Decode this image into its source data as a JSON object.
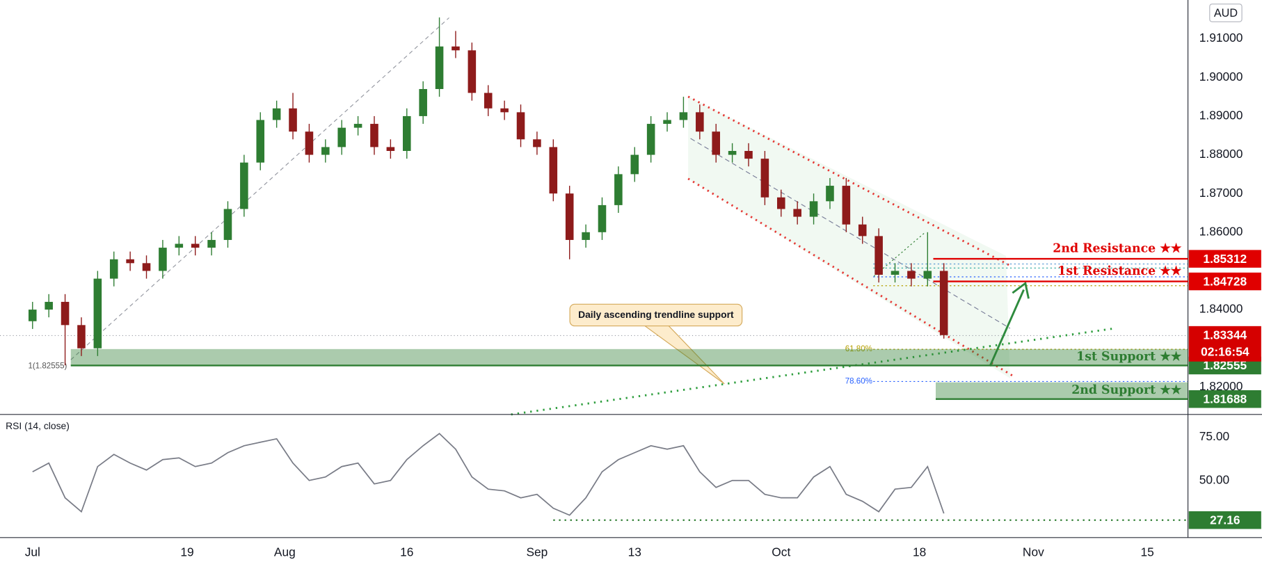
{
  "chart_data": [
    {
      "type": "candlestick",
      "currency": "AUD",
      "x": [
        0,
        2,
        4,
        6,
        8,
        10,
        12,
        14,
        16,
        18,
        20,
        22,
        24,
        26,
        28,
        30,
        32,
        34,
        36,
        38,
        40,
        42,
        44,
        46,
        48,
        50,
        52,
        54,
        56,
        58,
        60,
        62,
        64,
        66,
        68,
        70,
        72,
        74,
        76,
        78,
        80,
        82,
        84,
        86,
        88,
        90,
        92,
        94,
        96,
        98,
        100,
        102,
        104,
        106,
        108,
        110,
        112
      ],
      "open": [
        1.837,
        1.84,
        1.842,
        1.836,
        1.83,
        1.848,
        1.853,
        1.852,
        1.85,
        1.856,
        1.857,
        1.856,
        1.858,
        1.866,
        1.878,
        1.889,
        1.892,
        1.886,
        1.88,
        1.882,
        1.887,
        1.888,
        1.882,
        1.881,
        1.89,
        1.897,
        1.908,
        1.907,
        1.896,
        1.892,
        1.891,
        1.884,
        1.882,
        1.87,
        1.858,
        1.86,
        1.867,
        1.875,
        1.88,
        1.888,
        1.889,
        1.891,
        1.886,
        1.88,
        1.881,
        1.879,
        1.869,
        1.866,
        1.864,
        1.868,
        1.872,
        1.862,
        1.859,
        1.849,
        1.85,
        1.848,
        1.85
      ],
      "high": [
        1.842,
        1.844,
        1.844,
        1.838,
        1.85,
        1.855,
        1.855,
        1.854,
        1.858,
        1.859,
        1.859,
        1.86,
        1.868,
        1.88,
        1.891,
        1.894,
        1.896,
        1.888,
        1.884,
        1.889,
        1.89,
        1.89,
        1.884,
        1.892,
        1.899,
        1.9155,
        1.912,
        1.909,
        1.898,
        1.894,
        1.893,
        1.886,
        1.884,
        1.872,
        1.862,
        1.869,
        1.877,
        1.882,
        1.89,
        1.891,
        1.895,
        1.893,
        1.888,
        1.883,
        1.883,
        1.881,
        1.871,
        1.868,
        1.87,
        1.874,
        1.874,
        1.864,
        1.861,
        1.852,
        1.852,
        1.86,
        1.852
      ],
      "low": [
        1.835,
        1.838,
        1.8256,
        1.828,
        1.828,
        1.846,
        1.85,
        1.848,
        1.848,
        1.854,
        1.854,
        1.854,
        1.856,
        1.864,
        1.876,
        1.887,
        1.884,
        1.878,
        1.878,
        1.88,
        1.885,
        1.88,
        1.879,
        1.879,
        1.888,
        1.895,
        1.905,
        1.894,
        1.89,
        1.889,
        1.882,
        1.88,
        1.868,
        1.853,
        1.856,
        1.858,
        1.865,
        1.873,
        1.878,
        1.886,
        1.887,
        1.884,
        1.878,
        1.878,
        1.877,
        1.867,
        1.864,
        1.862,
        1.862,
        1.866,
        1.86,
        1.857,
        1.847,
        1.847,
        1.846,
        1.846,
        1.8325
      ],
      "close": [
        1.84,
        1.842,
        1.836,
        1.83,
        1.848,
        1.853,
        1.852,
        1.85,
        1.856,
        1.857,
        1.856,
        1.858,
        1.866,
        1.878,
        1.889,
        1.892,
        1.886,
        1.88,
        1.882,
        1.887,
        1.888,
        1.882,
        1.881,
        1.89,
        1.897,
        1.908,
        1.907,
        1.896,
        1.892,
        1.891,
        1.884,
        1.882,
        1.87,
        1.858,
        1.86,
        1.867,
        1.875,
        1.88,
        1.888,
        1.889,
        1.891,
        1.886,
        1.88,
        1.881,
        1.879,
        1.869,
        1.866,
        1.864,
        1.868,
        1.872,
        1.862,
        1.859,
        1.849,
        1.85,
        1.848,
        1.85,
        1.8334
      ],
      "up_color": "#2e7d32",
      "down_color": "#8e1b1b",
      "xlim": [
        -4,
        142
      ],
      "ylim": [
        1.8129,
        1.92
      ],
      "xticks": [
        {
          "value": 0,
          "label": "Jul"
        },
        19,
        {
          "value": 31,
          "label": "Aug"
        },
        {
          "value": 46,
          "label": "16"
        },
        {
          "value": 62,
          "label": "Sep"
        },
        {
          "value": 74,
          "label": "13"
        },
        {
          "value": 92,
          "label": "Oct"
        },
        {
          "value": 109,
          "label": "18"
        },
        {
          "value": 123,
          "label": "Nov"
        },
        {
          "value": 137,
          "label": "15"
        }
      ],
      "yticks": [
        {
          "value": 1.91,
          "label": "1.91000"
        },
        {
          "value": 1.9,
          "label": "1.90000"
        },
        {
          "value": 1.89,
          "label": "1.89000"
        },
        {
          "value": 1.88,
          "label": "1.88000"
        },
        {
          "value": 1.87,
          "label": "1.87000"
        },
        {
          "value": 1.86,
          "label": "1.86000"
        },
        {
          "value": 1.84,
          "label": "1.84000"
        },
        {
          "value": 1.82,
          "label": "1.82000"
        }
      ],
      "last_price": 1.83344,
      "countdown": "02:16:54",
      "last_color": "#d50000",
      "levels": [
        {
          "name": "2nd Resistance ★★",
          "value": 1.85312,
          "color": "#e00000",
          "x_start": 110.7
        },
        {
          "name": "1st Resistance ★★",
          "value": 1.84728,
          "color": "#e00000",
          "x_start": 110.7
        },
        {
          "name": "1st Support ★★",
          "value": 1.82555,
          "color": "#2e7d32",
          "zone_top": 1.8298,
          "x_start": 4.7
        },
        {
          "name": "2nd Support ★★",
          "value": 1.81688,
          "color": "#2e7d32",
          "zone_top": 1.8212,
          "x_start": 111
        }
      ],
      "annotations": {
        "callout": "Daily ascending trendline support",
        "fib_1": "1(1.82555)",
        "fib_618": "61.80%",
        "fib_786": "78.60%"
      }
    },
    {
      "type": "line",
      "title": "RSI (14, close)",
      "x": [
        0,
        2,
        4,
        6,
        8,
        10,
        12,
        14,
        16,
        18,
        20,
        22,
        24,
        26,
        28,
        30,
        32,
        34,
        36,
        38,
        40,
        42,
        44,
        46,
        48,
        50,
        52,
        54,
        56,
        58,
        60,
        62,
        64,
        66,
        68,
        70,
        72,
        74,
        76,
        78,
        80,
        82,
        84,
        86,
        88,
        90,
        92,
        94,
        96,
        98,
        100,
        102,
        104,
        106,
        108,
        110,
        112
      ],
      "values": [
        55,
        60,
        40,
        32,
        58,
        65,
        60,
        56,
        62,
        63,
        58,
        60,
        66,
        70,
        72,
        74,
        60,
        50,
        52,
        58,
        60,
        48,
        50,
        62,
        70,
        77,
        68,
        52,
        45,
        44,
        40,
        42,
        34,
        30,
        40,
        55,
        62,
        66,
        70,
        68,
        70,
        55,
        46,
        50,
        50,
        42,
        40,
        40,
        52,
        58,
        42,
        38,
        32,
        45,
        46,
        58,
        31
      ],
      "color": "#787b86",
      "ylim": [
        17.1,
        88
      ],
      "yticks": [
        {
          "value": 75,
          "label": "75.00"
        },
        {
          "value": 50,
          "label": "50.00"
        }
      ],
      "level": 27.16,
      "level_color": "#2e7d32",
      "level_x_start": 64
    }
  ]
}
